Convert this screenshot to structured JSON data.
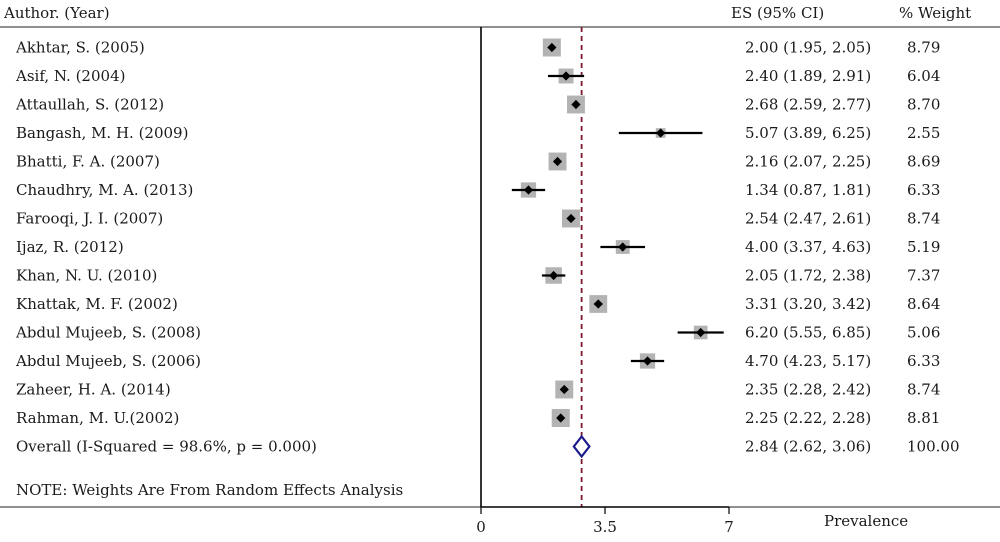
{
  "chart_data": {
    "type": "forest",
    "headers": {
      "author": "Author. (Year)",
      "es": "ES (95% CI)",
      "weight": "% Weight"
    },
    "studies": [
      {
        "label": "Akhtar, S. (2005)",
        "es": 2.0,
        "lo": 1.95,
        "hi": 2.05,
        "es_text": "2.00 (1.95, 2.05)",
        "weight": 8.79,
        "weight_text": "8.79"
      },
      {
        "label": "Asif, N. (2004)",
        "es": 2.4,
        "lo": 1.89,
        "hi": 2.91,
        "es_text": "2.40 (1.89, 2.91)",
        "weight": 6.04,
        "weight_text": "6.04"
      },
      {
        "label": "Attaullah, S. (2012)",
        "es": 2.68,
        "lo": 2.59,
        "hi": 2.77,
        "es_text": "2.68 (2.59, 2.77)",
        "weight": 8.7,
        "weight_text": "8.70"
      },
      {
        "label": "Bangash, M. H. (2009)",
        "es": 5.07,
        "lo": 3.89,
        "hi": 6.25,
        "es_text": "5.07 (3.89, 6.25)",
        "weight": 2.55,
        "weight_text": "2.55"
      },
      {
        "label": "Bhatti, F. A. (2007)",
        "es": 2.16,
        "lo": 2.07,
        "hi": 2.25,
        "es_text": "2.16 (2.07, 2.25)",
        "weight": 8.69,
        "weight_text": "8.69"
      },
      {
        "label": "Chaudhry, M. A. (2013)",
        "es": 1.34,
        "lo": 0.87,
        "hi": 1.81,
        "es_text": "1.34 (0.87, 1.81)",
        "weight": 6.33,
        "weight_text": "6.33"
      },
      {
        "label": "Farooqi, J. I. (2007)",
        "es": 2.54,
        "lo": 2.47,
        "hi": 2.61,
        "es_text": "2.54 (2.47, 2.61)",
        "weight": 8.74,
        "weight_text": "8.74"
      },
      {
        "label": "Ijaz, R. (2012)",
        "es": 4.0,
        "lo": 3.37,
        "hi": 4.63,
        "es_text": "4.00 (3.37, 4.63)",
        "weight": 5.19,
        "weight_text": "5.19"
      },
      {
        "label": "Khan, N. U. (2010)",
        "es": 2.05,
        "lo": 1.72,
        "hi": 2.38,
        "es_text": "2.05 (1.72, 2.38)",
        "weight": 7.37,
        "weight_text": "7.37"
      },
      {
        "label": "Khattak, M. F. (2002)",
        "es": 3.31,
        "lo": 3.2,
        "hi": 3.42,
        "es_text": "3.31 (3.20, 3.42)",
        "weight": 8.64,
        "weight_text": "8.64"
      },
      {
        "label": "Abdul Mujeeb, S. (2008)",
        "es": 6.2,
        "lo": 5.55,
        "hi": 6.85,
        "es_text": "6.20 (5.55, 6.85)",
        "weight": 5.06,
        "weight_text": "5.06"
      },
      {
        "label": "Abdul Mujeeb, S. (2006)",
        "es": 4.7,
        "lo": 4.23,
        "hi": 5.17,
        "es_text": "4.70 (4.23, 5.17)",
        "weight": 6.33,
        "weight_text": "6.33"
      },
      {
        "label": "Zaheer, H. A. (2014)",
        "es": 2.35,
        "lo": 2.28,
        "hi": 2.42,
        "es_text": "2.35 (2.28, 2.42)",
        "weight": 8.74,
        "weight_text": "8.74"
      },
      {
        "label": "Rahman, M. U.(2002)",
        "es": 2.25,
        "lo": 2.22,
        "hi": 2.28,
        "es_text": "2.25 (2.22, 2.28)",
        "weight": 8.81,
        "weight_text": "8.81"
      }
    ],
    "overall": {
      "label": "Overall  (I-Squared = 98.6%, p = 0.000)",
      "es": 2.84,
      "lo": 2.62,
      "hi": 3.06,
      "es_text": "2.84 (2.62, 3.06)",
      "weight_text": "100.00"
    },
    "note": "NOTE: Weights Are From Random Effects Analysis",
    "xaxis": {
      "ticks": [
        0,
        3.5,
        7
      ],
      "tick_labels": [
        "0",
        "3.5",
        "7"
      ],
      "label": "Prevalence"
    },
    "null_line": 0,
    "colors": {
      "box": "#b3b3b3",
      "ci": "#000000",
      "overall_line": "#7a1a2e",
      "diamond": "#1a1a8c"
    }
  }
}
